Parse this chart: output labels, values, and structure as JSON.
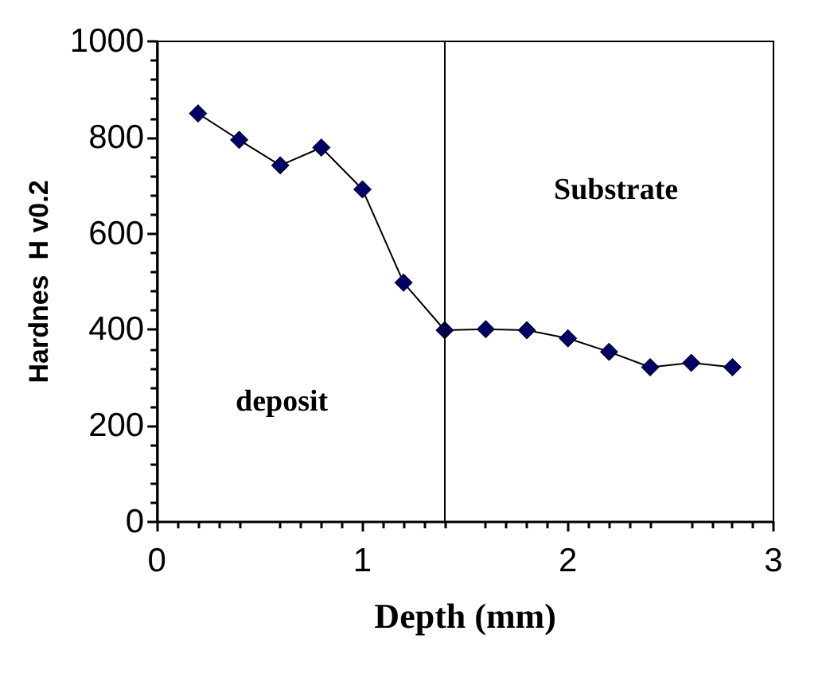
{
  "chart_data": {
    "type": "line",
    "xlabel": "Depth (mm)",
    "ylabel": "Hardnes  H v0.2",
    "x": [
      0.2,
      0.4,
      0.6,
      0.8,
      1.0,
      1.2,
      1.4,
      1.6,
      1.8,
      2.0,
      2.2,
      2.4,
      2.6,
      2.8
    ],
    "series": [
      {
        "color": "#000066",
        "values": [
          850,
          795,
          742,
          779,
          692,
          498,
          399,
          401,
          399,
          382,
          354,
          322,
          331,
          322
        ]
      }
    ],
    "xlim": [
      0,
      3
    ],
    "xticks": [
      0,
      1,
      2,
      3
    ],
    "ylim": [
      0,
      1000
    ],
    "yticks": [
      0,
      200,
      400,
      600,
      800,
      1000
    ],
    "ref_lines": [
      {
        "axis": "x",
        "value": 1.4,
        "color": "#000000"
      }
    ],
    "annotations": [
      "deposit",
      "Substrate"
    ],
    "marker": "diamond",
    "line_style": "solid",
    "grid": false
  }
}
